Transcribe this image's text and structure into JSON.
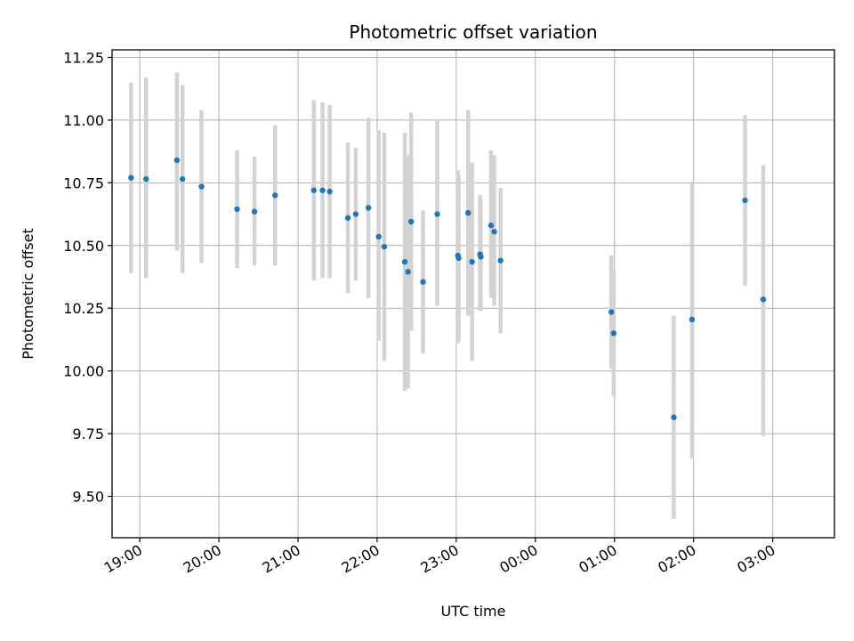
{
  "chart_data": {
    "type": "scatter",
    "title": "Photometric offset variation",
    "xlabel": "UTC time",
    "ylabel": "Photometric offset",
    "grid": true,
    "xlim": [
      -0.35,
      8.78
    ],
    "ylim": [
      9.335,
      11.28
    ],
    "x_unit": "hours since 19:00 UTC",
    "x_ticks": [
      {
        "value": 0,
        "label": "19:00"
      },
      {
        "value": 1,
        "label": "20:00"
      },
      {
        "value": 2,
        "label": "21:00"
      },
      {
        "value": 3,
        "label": "22:00"
      },
      {
        "value": 4,
        "label": "23:00"
      },
      {
        "value": 5,
        "label": "00:00"
      },
      {
        "value": 6,
        "label": "01:00"
      },
      {
        "value": 7,
        "label": "02:00"
      },
      {
        "value": 8,
        "label": "03:00"
      }
    ],
    "y_ticks": [
      {
        "value": 9.5,
        "label": "9.50"
      },
      {
        "value": 9.75,
        "label": "9.75"
      },
      {
        "value": 10.0,
        "label": "10.00"
      },
      {
        "value": 10.25,
        "label": "10.25"
      },
      {
        "value": 10.5,
        "label": "10.50"
      },
      {
        "value": 10.75,
        "label": "10.75"
      },
      {
        "value": 11.0,
        "label": "11.00"
      },
      {
        "value": 11.25,
        "label": "11.25"
      }
    ],
    "point_color": "#1f77b4",
    "errorbar_color": "#d3d3d3",
    "points": [
      {
        "x": -0.11,
        "y": 10.77,
        "ylow": 10.39,
        "yhigh": 11.15
      },
      {
        "x": 0.08,
        "y": 10.765,
        "ylow": 10.37,
        "yhigh": 11.17
      },
      {
        "x": 0.47,
        "y": 10.84,
        "ylow": 10.48,
        "yhigh": 11.19
      },
      {
        "x": 0.54,
        "y": 10.765,
        "ylow": 10.39,
        "yhigh": 11.14
      },
      {
        "x": 0.78,
        "y": 10.735,
        "ylow": 10.43,
        "yhigh": 11.04
      },
      {
        "x": 1.23,
        "y": 10.645,
        "ylow": 10.41,
        "yhigh": 10.88
      },
      {
        "x": 1.45,
        "y": 10.635,
        "ylow": 10.42,
        "yhigh": 10.855
      },
      {
        "x": 1.71,
        "y": 10.7,
        "ylow": 10.42,
        "yhigh": 10.98
      },
      {
        "x": 2.2,
        "y": 10.72,
        "ylow": 10.36,
        "yhigh": 11.08
      },
      {
        "x": 2.31,
        "y": 10.72,
        "ylow": 10.37,
        "yhigh": 11.07
      },
      {
        "x": 2.4,
        "y": 10.715,
        "ylow": 10.37,
        "yhigh": 11.06
      },
      {
        "x": 2.63,
        "y": 10.61,
        "ylow": 10.31,
        "yhigh": 10.91
      },
      {
        "x": 2.73,
        "y": 10.625,
        "ylow": 10.36,
        "yhigh": 10.89
      },
      {
        "x": 2.89,
        "y": 10.65,
        "ylow": 10.29,
        "yhigh": 11.01
      },
      {
        "x": 3.02,
        "y": 10.535,
        "ylow": 10.12,
        "yhigh": 10.96
      },
      {
        "x": 3.09,
        "y": 10.495,
        "ylow": 10.04,
        "yhigh": 10.95
      },
      {
        "x": 3.35,
        "y": 10.435,
        "ylow": 9.92,
        "yhigh": 10.95
      },
      {
        "x": 3.39,
        "y": 10.395,
        "ylow": 9.93,
        "yhigh": 10.86
      },
      {
        "x": 3.43,
        "y": 10.595,
        "ylow": 10.16,
        "yhigh": 11.03
      },
      {
        "x": 3.58,
        "y": 10.355,
        "ylow": 10.07,
        "yhigh": 10.64
      },
      {
        "x": 3.76,
        "y": 10.625,
        "ylow": 10.26,
        "yhigh": 11.0
      },
      {
        "x": 4.02,
        "y": 10.46,
        "ylow": 10.11,
        "yhigh": 10.8
      },
      {
        "x": 4.03,
        "y": 10.45,
        "ylow": 10.12,
        "yhigh": 10.78
      },
      {
        "x": 4.15,
        "y": 10.63,
        "ylow": 10.22,
        "yhigh": 11.04
      },
      {
        "x": 4.2,
        "y": 10.435,
        "ylow": 10.04,
        "yhigh": 10.83
      },
      {
        "x": 4.3,
        "y": 10.465,
        "ylow": 10.24,
        "yhigh": 10.7
      },
      {
        "x": 4.31,
        "y": 10.455,
        "ylow": 10.24,
        "yhigh": 10.68
      },
      {
        "x": 4.44,
        "y": 10.58,
        "ylow": 10.29,
        "yhigh": 10.88
      },
      {
        "x": 4.48,
        "y": 10.555,
        "ylow": 10.26,
        "yhigh": 10.86
      },
      {
        "x": 4.56,
        "y": 10.44,
        "ylow": 10.15,
        "yhigh": 10.73
      },
      {
        "x": 5.96,
        "y": 10.235,
        "ylow": 10.01,
        "yhigh": 10.46
      },
      {
        "x": 5.99,
        "y": 10.15,
        "ylow": 9.9,
        "yhigh": 10.4
      },
      {
        "x": 6.75,
        "y": 9.815,
        "ylow": 9.41,
        "yhigh": 10.22
      },
      {
        "x": 6.98,
        "y": 10.205,
        "ylow": 9.65,
        "yhigh": 10.75
      },
      {
        "x": 7.65,
        "y": 10.68,
        "ylow": 10.34,
        "yhigh": 11.02
      },
      {
        "x": 7.88,
        "y": 10.285,
        "ylow": 9.74,
        "yhigh": 10.82
      }
    ]
  }
}
